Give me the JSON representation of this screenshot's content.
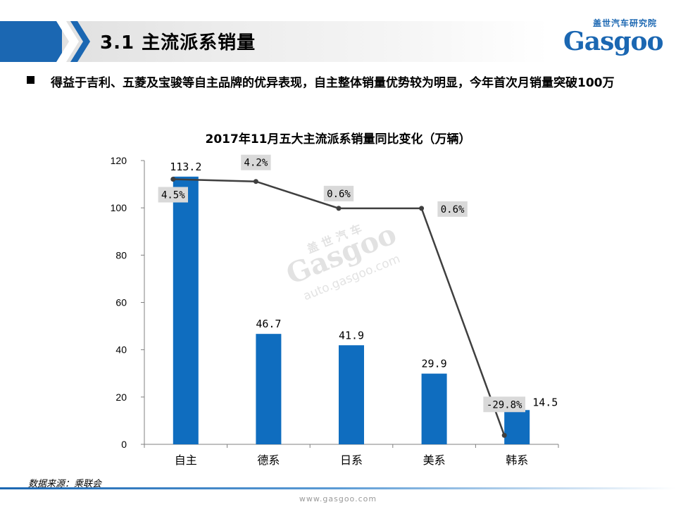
{
  "header": {
    "section_title": "3.1 主流派系销量",
    "logo_cn": "盖世汽车研究院",
    "logo_word": "Gasgoo"
  },
  "bullet": {
    "text": "得益于吉利、五菱及宝骏等自主品牌的优异表现，自主整体销量优势较为明显，今年首次月销量突破100万"
  },
  "chart_data": {
    "type": "bar+line",
    "title": "2017年11月五大主流派系销量同比变化（万辆）",
    "categories": [
      "自主",
      "德系",
      "日系",
      "美系",
      "韩系"
    ],
    "values": [
      113.2,
      46.7,
      41.9,
      29.9,
      14.5
    ],
    "value_labels": [
      "113.2",
      "46.7",
      "41.9",
      "29.9",
      "14.5"
    ],
    "growth_labels": [
      "4.5%",
      "4.2%",
      "0.6%",
      "0.6%",
      "-29.8%"
    ],
    "ylim": [
      0,
      120
    ],
    "yticks": [
      0,
      20,
      40,
      60,
      80,
      100,
      120
    ],
    "line_values": [
      4.5,
      4.2,
      0.6,
      0.6,
      -29.8
    ],
    "line_range": [
      -31,
      7
    ],
    "bar_color": "#0f6dbf",
    "line_color": "#3f3f3f",
    "grid": false
  },
  "watermark": {
    "cn": "盖世汽车",
    "word": "Gasgoo",
    "url": "auto.gasgoo.com"
  },
  "footer": {
    "source": "数据来源：乘联会",
    "url": "www.gasgoo.com"
  }
}
